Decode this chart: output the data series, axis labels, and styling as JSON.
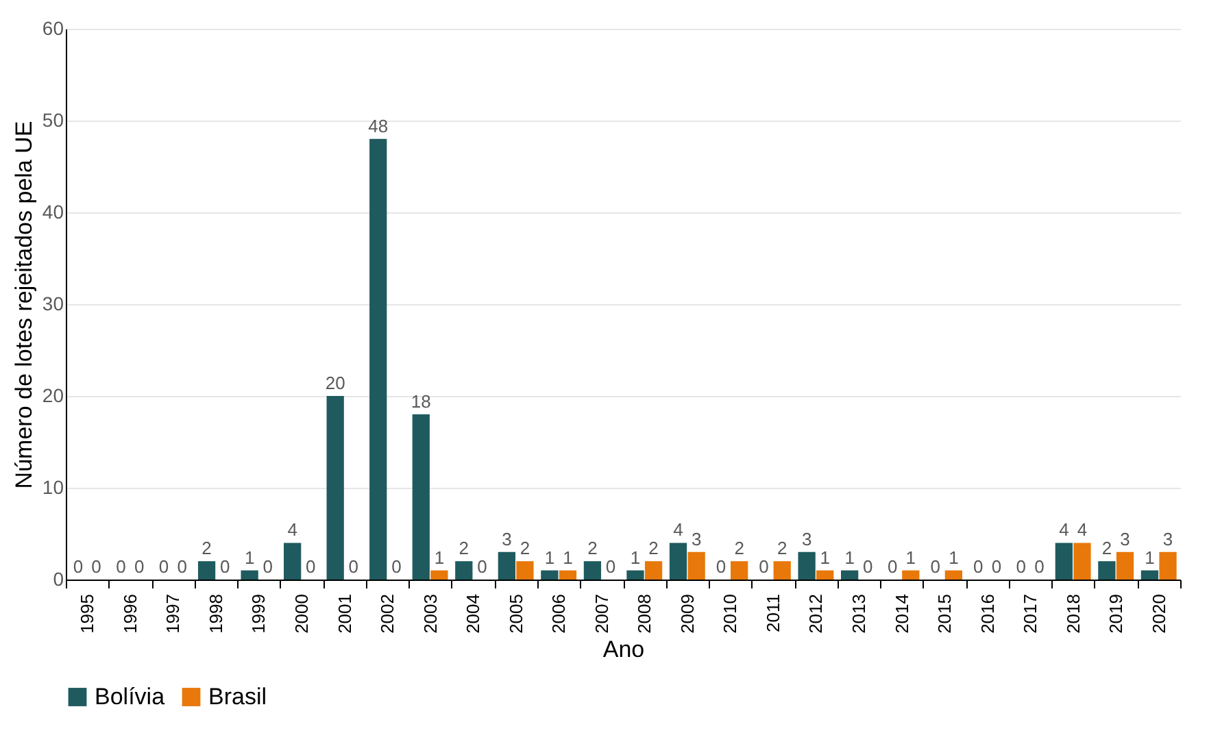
{
  "chart_data": {
    "type": "bar",
    "xlabel": "Ano",
    "ylabel": "Número de lotes rejeitados pela UE",
    "categories": [
      "1995",
      "1996",
      "1997",
      "1998",
      "1999",
      "2000",
      "2001",
      "2002",
      "2003",
      "2004",
      "2005",
      "2006",
      "2007",
      "2008",
      "2009",
      "2010",
      "2011",
      "2012",
      "2013",
      "2014",
      "2015",
      "2016",
      "2017",
      "2018",
      "2019",
      "2020"
    ],
    "series": [
      {
        "name": "Bolívia",
        "color": "#1f5b5e",
        "values": [
          0,
          0,
          0,
          2,
          1,
          4,
          20,
          48,
          18,
          2,
          3,
          1,
          2,
          1,
          4,
          0,
          0,
          3,
          1,
          0,
          0,
          0,
          0,
          4,
          2,
          1
        ]
      },
      {
        "name": "Brasil",
        "color": "#e8780a",
        "values": [
          0,
          0,
          0,
          0,
          0,
          0,
          0,
          0,
          1,
          0,
          2,
          1,
          0,
          2,
          3,
          2,
          2,
          1,
          0,
          1,
          1,
          0,
          0,
          4,
          3,
          3
        ]
      }
    ],
    "ylim": [
      0,
      60
    ],
    "yticks": [
      0,
      10,
      20,
      30,
      40,
      50,
      60
    ],
    "grid": "y",
    "legend": "bottom",
    "data_labels": true
  }
}
